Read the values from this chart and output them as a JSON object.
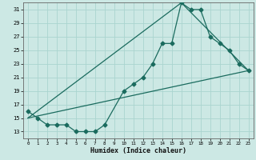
{
  "xlabel": "Humidex (Indice chaleur)",
  "bg_color": "#cce8e4",
  "grid_color": "#aad4cf",
  "line_color": "#1a6b5e",
  "xlim": [
    -0.5,
    23.5
  ],
  "ylim": [
    12,
    32
  ],
  "yticks": [
    13,
    15,
    17,
    19,
    21,
    23,
    25,
    27,
    29,
    31
  ],
  "xticks": [
    0,
    1,
    2,
    3,
    4,
    5,
    6,
    7,
    8,
    9,
    10,
    11,
    12,
    13,
    14,
    15,
    16,
    17,
    18,
    19,
    20,
    21,
    22,
    23
  ],
  "line1_x": [
    0,
    1,
    2,
    3,
    4,
    5,
    6,
    7,
    8,
    10,
    11,
    12,
    13,
    14,
    15,
    16,
    17,
    18,
    19,
    20,
    21,
    22,
    23
  ],
  "line1_y": [
    16,
    15,
    14,
    14,
    14,
    13,
    13,
    13,
    14,
    19,
    20,
    21,
    23,
    26,
    26,
    32,
    31,
    31,
    27,
    26,
    25,
    23,
    22
  ],
  "line2_x": [
    0,
    23
  ],
  "line2_y": [
    15,
    22
  ],
  "line3_x": [
    0,
    16,
    23
  ],
  "line3_y": [
    15,
    32,
    22
  ]
}
